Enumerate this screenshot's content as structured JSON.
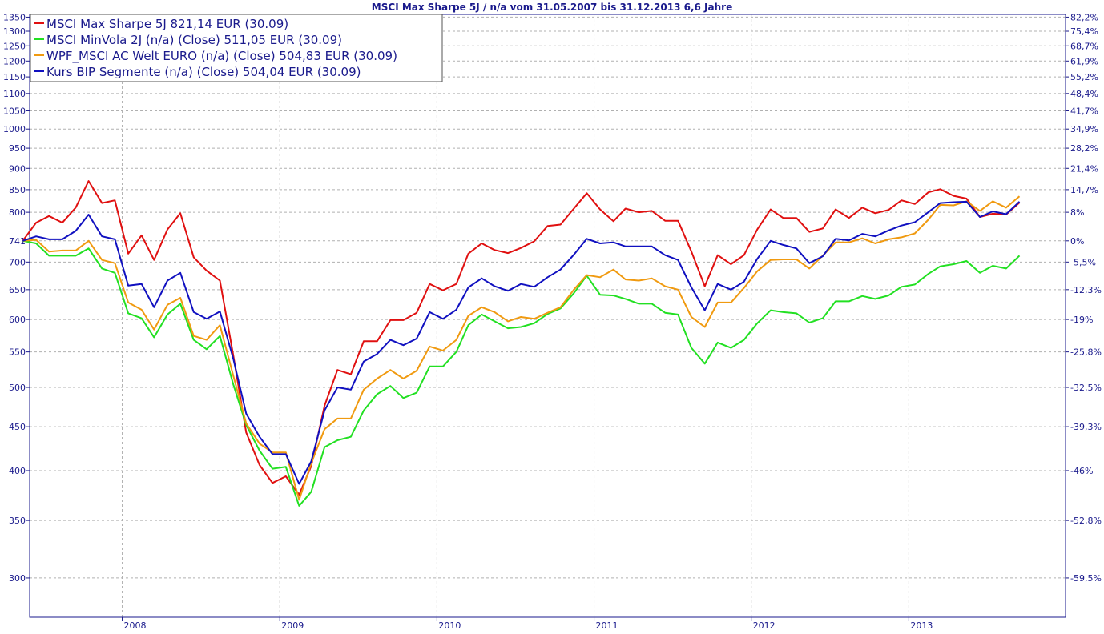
{
  "chart_data": {
    "type": "line",
    "title": "MSCI Max Sharpe 5J / n/a vom 31.05.2007 bis 31.12.2013 6,6 Jahre",
    "xlabel": "",
    "ylabel": "",
    "y_scale": "log",
    "ylim": [
      270,
      1360
    ],
    "xlim": [
      "2007-05-31",
      "2013-12-31"
    ],
    "grid": true,
    "legend_position": "top-left",
    "x_ticks": [
      "2008",
      "2009",
      "2010",
      "2011",
      "2012",
      "2013"
    ],
    "y_ticks_left": [
      300,
      350,
      400,
      450,
      500,
      550,
      600,
      650,
      700,
      741,
      800,
      850,
      900,
      950,
      1000,
      1050,
      1100,
      1150,
      1200,
      1250,
      1300,
      1350
    ],
    "y_ticks_right": [
      "82,2%",
      "75,4%",
      "68,7%",
      "61,9%",
      "55,2%",
      "48,4%",
      "41,7%",
      "34,9%",
      "28,2%",
      "21,4%",
      "14,7%",
      "8%",
      "0%",
      "-5,5%",
      "-12,3%",
      "-19%",
      "-25,8%",
      "-32,5%",
      "-39,3%",
      "-46%",
      "-52,8%",
      "-59,5%"
    ],
    "x": [
      "2007-05",
      "2007-06",
      "2007-07",
      "2007-08",
      "2007-09",
      "2007-10",
      "2007-11",
      "2007-12",
      "2008-01",
      "2008-02",
      "2008-03",
      "2008-04",
      "2008-05",
      "2008-06",
      "2008-07",
      "2008-08",
      "2008-09",
      "2008-10",
      "2008-11",
      "2008-12",
      "2009-01",
      "2009-02",
      "2009-03",
      "2009-04",
      "2009-05",
      "2009-06",
      "2009-07",
      "2009-08",
      "2009-09",
      "2009-10",
      "2009-11",
      "2009-12",
      "2010-01",
      "2010-02",
      "2010-03",
      "2010-04",
      "2010-05",
      "2010-06",
      "2010-07",
      "2010-08",
      "2010-09",
      "2010-10",
      "2010-11",
      "2010-12",
      "2011-01",
      "2011-02",
      "2011-03",
      "2011-04",
      "2011-05",
      "2011-06",
      "2011-07",
      "2011-08",
      "2011-09",
      "2011-10",
      "2011-11",
      "2011-12",
      "2012-01",
      "2012-02",
      "2012-03",
      "2012-04",
      "2012-05",
      "2012-06",
      "2012-07",
      "2012-08",
      "2012-09",
      "2012-10",
      "2012-11",
      "2012-12",
      "2013-01",
      "2013-02",
      "2013-03",
      "2013-04",
      "2013-05",
      "2013-06",
      "2013-07",
      "2013-08",
      "2013-09"
    ],
    "series": [
      {
        "name": "MSCI Max Sharpe 5J 821,14 EUR (30.09)",
        "color": "#e01010",
        "values": [
          741,
          778,
          792,
          778,
          810,
          870,
          820,
          826,
          716,
          752,
          704,
          764,
          798,
          709,
          684,
          666,
          545,
          443,
          406,
          387,
          394,
          375,
          405,
          476,
          524,
          518,
          566,
          566,
          599,
          599,
          611,
          660,
          649,
          660,
          716,
          736,
          723,
          717,
          727,
          740,
          771,
          774,
          808,
          842,
          806,
          781,
          808,
          800,
          803,
          782,
          782,
          720,
          656,
          713,
          696,
          713,
          764,
          806,
          788,
          788,
          759,
          766,
          806,
          788,
          810,
          798,
          805,
          826,
          818,
          844,
          851,
          836,
          830,
          790,
          797,
          795,
          821
        ]
      },
      {
        "name": "MSCI MinVola 2J (n/a) (Close) 511,05 EUR (30.09)",
        "color": "#22e022",
        "values": [
          741,
          736,
          712,
          712,
          712,
          726,
          688,
          680,
          610,
          602,
          572,
          608,
          626,
          568,
          554,
          574,
          504,
          452,
          422,
          402,
          404,
          364,
          378,
          426,
          434,
          438,
          470,
          491,
          502,
          486,
          493,
          529,
          529,
          550,
          591,
          608,
          597,
          586,
          588,
          594,
          609,
          618,
          644,
          675,
          641,
          640,
          634,
          626,
          626,
          611,
          608,
          556,
          533,
          564,
          556,
          568,
          594,
          615,
          612,
          610,
          595,
          602,
          630,
          630,
          639,
          634,
          640,
          655,
          659,
          678,
          692,
          696,
          702,
          680,
          693,
          688,
          712
        ]
      },
      {
        "name": "WPF_MSCI AC Welt EURO (n/a) (Close) 504,83 EUR (30.09)",
        "color": "#f09a10",
        "values": [
          741,
          743,
          720,
          722,
          722,
          741,
          704,
          698,
          628,
          616,
          584,
          624,
          636,
          574,
          568,
          591,
          516,
          454,
          430,
          420,
          420,
          370,
          408,
          447,
          460,
          460,
          497,
          512,
          524,
          512,
          523,
          558,
          552,
          568,
          606,
          620,
          612,
          597,
          604,
          601,
          611,
          620,
          650,
          676,
          672,
          686,
          668,
          666,
          670,
          656,
          650,
          604,
          588,
          628,
          628,
          653,
          683,
          704,
          705,
          705,
          688,
          712,
          738,
          738,
          746,
          736,
          744,
          748,
          756,
          784,
          816,
          815,
          824,
          803,
          824,
          810,
          835
        ]
      },
      {
        "name": "Kurs BIP Segmente (n/a) (Close) 504,04 EUR (30.09)",
        "color": "#1010c0",
        "values": [
          741,
          750,
          744,
          744,
          761,
          795,
          750,
          744,
          657,
          660,
          620,
          666,
          680,
          612,
          601,
          613,
          540,
          466,
          438,
          418,
          418,
          386,
          410,
          470,
          500,
          497,
          536,
          547,
          568,
          560,
          570,
          612,
          601,
          616,
          654,
          670,
          656,
          648,
          660,
          655,
          672,
          686,
          714,
          745,
          736,
          738,
          730,
          730,
          730,
          713,
          704,
          654,
          615,
          660,
          650,
          664,
          706,
          741,
          733,
          726,
          698,
          711,
          745,
          742,
          755,
          750,
          762,
          772,
          779,
          800,
          820,
          822,
          823,
          790,
          802,
          796,
          823
        ]
      }
    ]
  }
}
